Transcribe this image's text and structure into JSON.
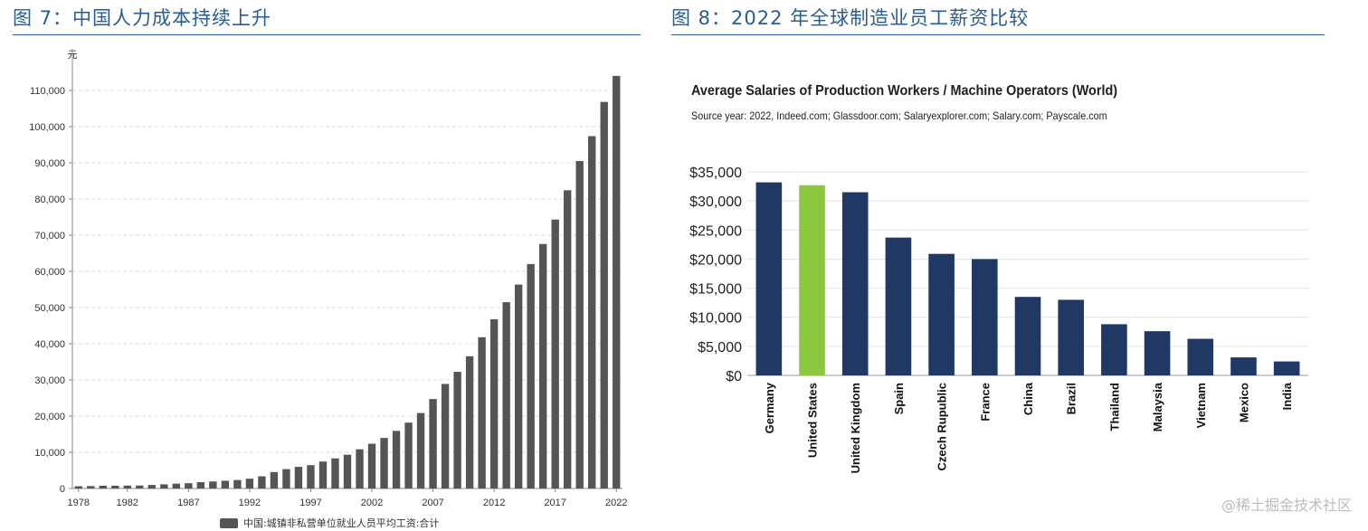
{
  "fig7": {
    "title": "图 7：中国人力成本持续上升"
  },
  "fig8": {
    "title": "图 8：2022 年全球制造业员工薪资比较",
    "chart_title": "Average Salaries of Production Workers / Machine Operators (World)",
    "source": "Source year: 2022, Indeed.com; Glassdoor.com; Salaryexplorer.com; Salary.com; Payscale.com"
  },
  "watermark": "@稀土掘金技术社区",
  "colors": {
    "title_blue": "#2a5d8f",
    "bar_gray": "#555555",
    "bar_navy": "#1f3864",
    "bar_green": "#8dc63f"
  },
  "chart_data": [
    {
      "type": "bar",
      "title": "",
      "ylabel": "元",
      "xlabel": "",
      "ylim": [
        0,
        115000
      ],
      "yticks": [
        0,
        10000,
        20000,
        30000,
        40000,
        50000,
        60000,
        70000,
        80000,
        90000,
        100000,
        110000
      ],
      "ytick_labels": [
        "0",
        "10,000",
        "20,000",
        "30,000",
        "40,000",
        "50,000",
        "60,000",
        "70,000",
        "80,000",
        "90,000",
        "100,000",
        "110,000"
      ],
      "x_tick_labels": [
        "1978",
        "1982",
        "1987",
        "1992",
        "1997",
        "2002",
        "2007",
        "2012",
        "2017",
        "2022"
      ],
      "legend": "中国:城镇非私营单位就业人员平均工资:合计",
      "grid": true,
      "categories": [
        1978,
        1979,
        1980,
        1981,
        1982,
        1983,
        1984,
        1985,
        1986,
        1987,
        1988,
        1989,
        1990,
        1991,
        1992,
        1993,
        1994,
        1995,
        1996,
        1997,
        1998,
        1999,
        2000,
        2001,
        2002,
        2003,
        2004,
        2005,
        2006,
        2007,
        2008,
        2009,
        2010,
        2011,
        2012,
        2013,
        2014,
        2015,
        2016,
        2017,
        2018,
        2019,
        2020,
        2021,
        2022
      ],
      "values": [
        615,
        668,
        762,
        772,
        798,
        826,
        974,
        1148,
        1329,
        1459,
        1747,
        1935,
        2140,
        2340,
        2711,
        3371,
        4538,
        5348,
        5980,
        6444,
        7446,
        8319,
        9333,
        10834,
        12373,
        13969,
        15920,
        18200,
        20856,
        24721,
        28898,
        32244,
        36539,
        41799,
        46769,
        51483,
        56360,
        62029,
        67569,
        74318,
        82413,
        90501,
        97379,
        106837,
        114029
      ]
    },
    {
      "type": "bar",
      "title": "Average Salaries of Production Workers / Machine Operators (World)",
      "xlabel": "",
      "ylabel": "",
      "ylim": [
        0,
        35000
      ],
      "yticks": [
        0,
        5000,
        10000,
        15000,
        20000,
        25000,
        30000,
        35000
      ],
      "ytick_labels": [
        "$0",
        "$5,000",
        "$10,000",
        "$15,000",
        "$20,000",
        "$25,000",
        "$30,000",
        "$35,000"
      ],
      "grid": true,
      "categories": [
        "Germany",
        "United States",
        "United Kingdom",
        "Spain",
        "Czech Rupublic",
        "France",
        "China",
        "Brazil",
        "Thailand",
        "Malaysia",
        "Vietnam",
        "Mexico",
        "India"
      ],
      "values": [
        33200,
        32700,
        31500,
        23700,
        20900,
        20000,
        13500,
        13000,
        8800,
        7600,
        6300,
        3100,
        2400
      ],
      "highlight": "United States"
    }
  ]
}
